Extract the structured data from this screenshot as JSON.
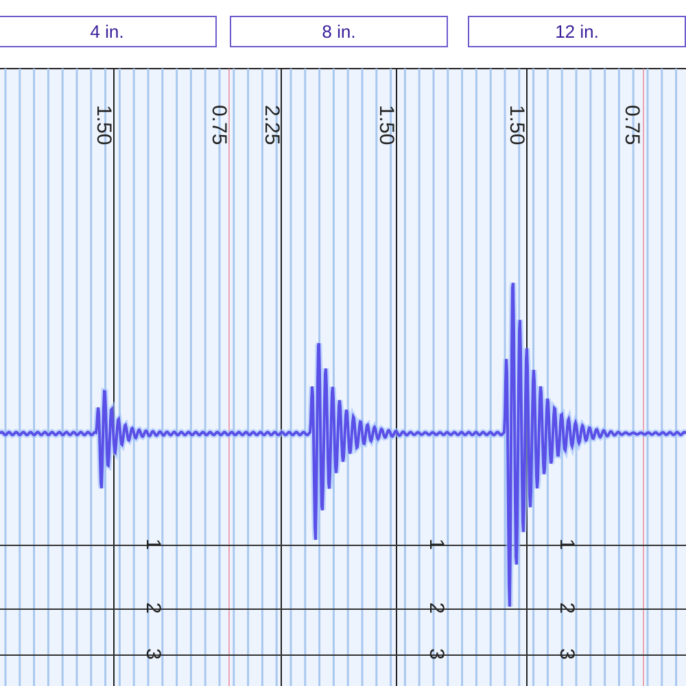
{
  "buttons": [
    {
      "label": "4 in."
    },
    {
      "label": "8 in."
    },
    {
      "label": "12 in."
    }
  ],
  "scale_labels": [
    "1.50",
    "0.75",
    "2.25",
    "1.50",
    "1.50",
    "0.75"
  ],
  "row_label_groups": [
    [
      "1",
      "2",
      "3"
    ],
    [
      "1",
      "2",
      "3"
    ],
    [
      "1",
      "2",
      "3"
    ]
  ]
}
